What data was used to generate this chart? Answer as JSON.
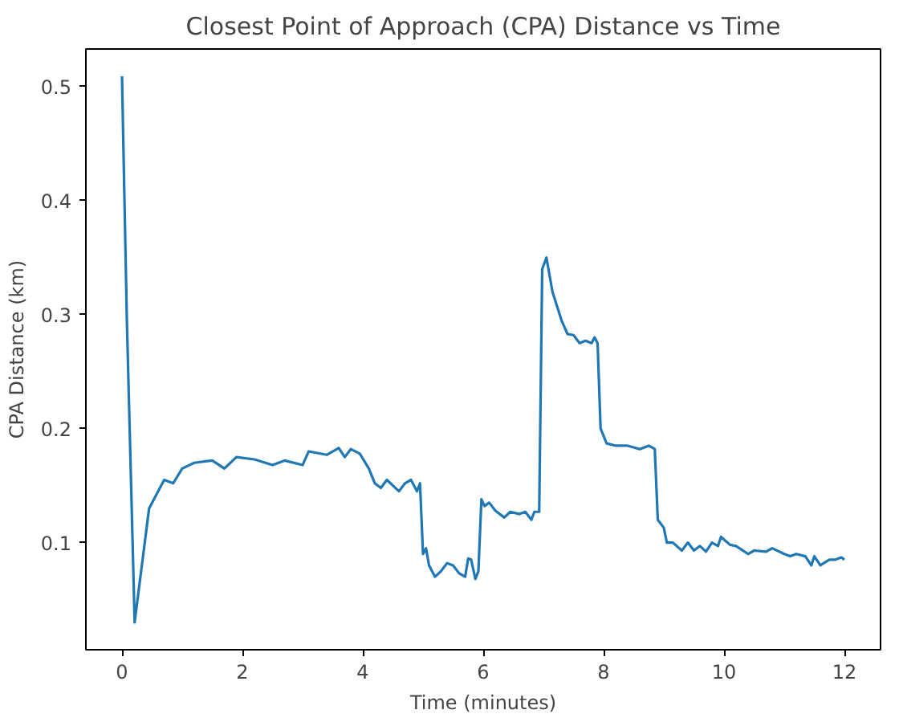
{
  "chart_data": {
    "type": "line",
    "title": "Closest Point of Approach (CPA) Distance vs Time",
    "xlabel": "Time (minutes)",
    "ylabel": "CPA Distance (km)",
    "x": [
      0,
      0.08,
      0.21,
      0.45,
      0.5,
      0.6,
      0.7,
      0.85,
      1.0,
      1.2,
      1.5,
      1.7,
      1.9,
      2.2,
      2.5,
      2.7,
      3.0,
      3.1,
      3.4,
      3.6,
      3.7,
      3.8,
      3.95,
      4.1,
      4.2,
      4.3,
      4.4,
      4.6,
      4.7,
      4.8,
      4.9,
      4.95,
      5.0,
      5.05,
      5.1,
      5.2,
      5.3,
      5.4,
      5.5,
      5.6,
      5.7,
      5.75,
      5.8,
      5.87,
      5.92,
      5.97,
      6.02,
      6.1,
      6.2,
      6.35,
      6.45,
      6.6,
      6.7,
      6.8,
      6.85,
      6.93,
      6.98,
      7.05,
      7.15,
      7.3,
      7.4,
      7.5,
      7.6,
      7.7,
      7.8,
      7.85,
      7.9,
      7.95,
      8.05,
      8.2,
      8.4,
      8.6,
      8.75,
      8.85,
      8.9,
      9.0,
      9.05,
      9.15,
      9.3,
      9.4,
      9.5,
      9.6,
      9.7,
      9.8,
      9.9,
      9.95,
      10.1,
      10.2,
      10.4,
      10.5,
      10.7,
      10.8,
      11.0,
      11.1,
      11.2,
      11.35,
      11.45,
      11.5,
      11.6,
      11.75,
      11.85,
      11.95,
      12.0
    ],
    "series": [
      {
        "color": "#1f77b4",
        "values": [
          0.509,
          0.297,
          0.03,
          0.13,
          0.135,
          0.145,
          0.155,
          0.152,
          0.165,
          0.17,
          0.172,
          0.165,
          0.175,
          0.173,
          0.168,
          0.172,
          0.168,
          0.18,
          0.177,
          0.183,
          0.175,
          0.182,
          0.178,
          0.165,
          0.152,
          0.148,
          0.155,
          0.145,
          0.152,
          0.155,
          0.145,
          0.152,
          0.09,
          0.095,
          0.08,
          0.07,
          0.075,
          0.082,
          0.08,
          0.073,
          0.07,
          0.086,
          0.085,
          0.068,
          0.075,
          0.138,
          0.132,
          0.135,
          0.128,
          0.122,
          0.127,
          0.125,
          0.127,
          0.12,
          0.127,
          0.127,
          0.34,
          0.35,
          0.32,
          0.295,
          0.283,
          0.282,
          0.275,
          0.277,
          0.275,
          0.28,
          0.275,
          0.2,
          0.187,
          0.185,
          0.185,
          0.182,
          0.185,
          0.182,
          0.12,
          0.113,
          0.1,
          0.1,
          0.093,
          0.1,
          0.093,
          0.097,
          0.092,
          0.1,
          0.097,
          0.105,
          0.098,
          0.097,
          0.09,
          0.093,
          0.092,
          0.095,
          0.09,
          0.088,
          0.09,
          0.088,
          0.08,
          0.088,
          0.08,
          0.085,
          0.085,
          0.087,
          0.085
        ]
      }
    ],
    "xlim": [
      -0.6,
      12.6
    ],
    "ylim": [
      0.006,
      0.533
    ],
    "xticks": [
      0,
      2,
      4,
      6,
      8,
      10,
      12
    ],
    "yticks": [
      0.1,
      0.2,
      0.3,
      0.4,
      0.5
    ],
    "grid": false,
    "marker": "none",
    "line_style": "solid"
  }
}
